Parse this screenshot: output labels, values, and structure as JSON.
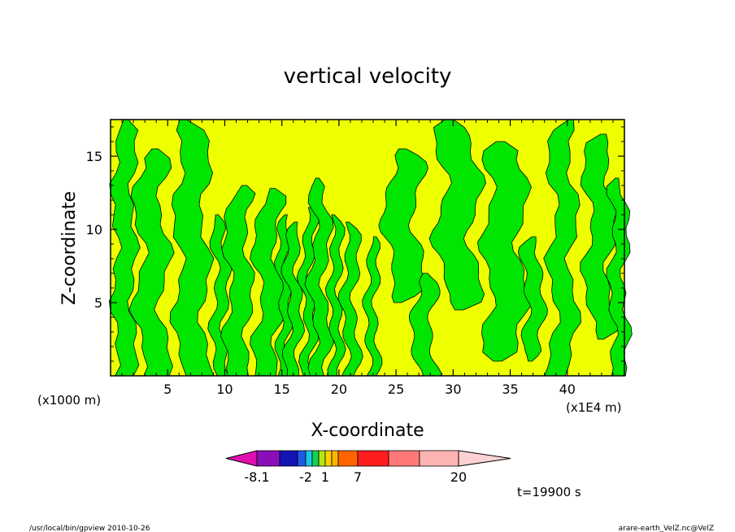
{
  "chart_data": {
    "type": "heatmap",
    "title": "vertical velocity",
    "xlabel": "X-coordinate",
    "ylabel": "Z-coordinate",
    "x_unit_left": "(x1000 m)",
    "x_unit_right": "(x1E4 m)",
    "xlim": [
      0,
      45
    ],
    "ylim": [
      0,
      17.5
    ],
    "x_ticks": [
      5,
      10,
      15,
      20,
      25,
      30,
      35,
      40
    ],
    "y_ticks": [
      5,
      10,
      15
    ],
    "colorbar": {
      "labels": [
        {
          "value": -8.1,
          "text": "-8.1"
        },
        {
          "value": -2,
          "text": "-2"
        },
        {
          "value": 1,
          "text": "1"
        },
        {
          "value": 7,
          "text": "7"
        },
        {
          "value": 20,
          "text": "20"
        }
      ],
      "colors": [
        "#e010b0",
        "#8a0fb8",
        "#1414b4",
        "#1e5ae6",
        "#19c8e6",
        "#14d25a",
        "#b4e614",
        "#ffd200",
        "#ffb400",
        "#ff6400",
        "#ff1e1e",
        "#ff7878",
        "#ffb4b4",
        "#ffd2d2"
      ]
    },
    "field_colors": {
      "positive": "#eeff00",
      "negative": "#00e600"
    },
    "legend_placement": "bottom"
  },
  "annotations": {
    "time": "t=19900 s",
    "footer_left": "/usr/local/bin/gpview  2010-10-26",
    "footer_right": "arare-earth_VelZ.nc@VelZ"
  }
}
